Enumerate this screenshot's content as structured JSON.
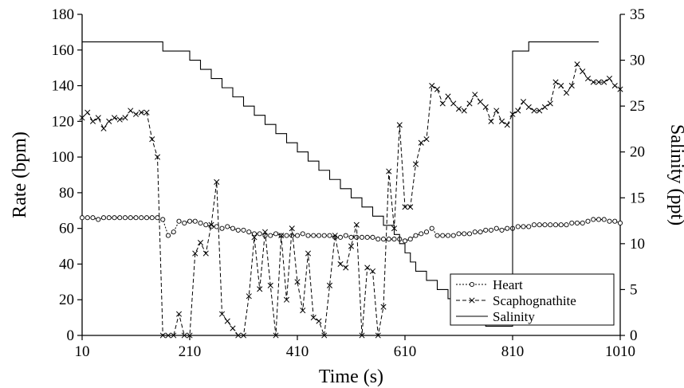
{
  "chart_data": {
    "type": "line",
    "title": "",
    "xlabel": "Time (s)",
    "ylabel": "Rate (bpm)",
    "y2label": "Salinity (ppt)",
    "xlim": [
      10,
      1010
    ],
    "ylim": [
      0,
      180
    ],
    "y2lim": [
      0,
      35
    ],
    "x_ticks": [
      10,
      210,
      410,
      610,
      810,
      1010
    ],
    "y_ticks": [
      0,
      20,
      40,
      60,
      80,
      100,
      120,
      140,
      160,
      180
    ],
    "y2_ticks": [
      0,
      5,
      10,
      15,
      20,
      25,
      30,
      35
    ],
    "grid": false,
    "legend_position": "bottom-right",
    "series": [
      {
        "name": "Heart",
        "axis": "left",
        "style": "dotted-circle",
        "x": [
          10,
          20,
          30,
          40,
          50,
          60,
          70,
          80,
          90,
          100,
          110,
          120,
          130,
          140,
          150,
          160,
          170,
          180,
          190,
          200,
          210,
          220,
          230,
          240,
          250,
          260,
          270,
          280,
          290,
          300,
          310,
          320,
          330,
          340,
          350,
          360,
          370,
          380,
          390,
          400,
          410,
          420,
          430,
          440,
          450,
          460,
          470,
          480,
          490,
          500,
          510,
          520,
          530,
          540,
          550,
          560,
          570,
          580,
          590,
          600,
          610,
          620,
          630,
          640,
          650,
          660,
          670,
          680,
          690,
          700,
          710,
          720,
          730,
          740,
          750,
          760,
          770,
          780,
          790,
          800,
          810,
          820,
          830,
          840,
          850,
          860,
          870,
          880,
          890,
          900,
          910,
          920,
          930,
          940,
          950,
          960,
          970,
          980,
          990,
          1000,
          1010
        ],
        "y": [
          66,
          66,
          66,
          65,
          66,
          66,
          66,
          66,
          66,
          66,
          66,
          66,
          66,
          66,
          66,
          65,
          56,
          58,
          64,
          63,
          64,
          64,
          63,
          62,
          61,
          61,
          60,
          61,
          60,
          59,
          59,
          58,
          57,
          57,
          56,
          56,
          57,
          56,
          56,
          56,
          56,
          57,
          56,
          56,
          56,
          56,
          56,
          55,
          55,
          56,
          55,
          55,
          55,
          55,
          55,
          54,
          54,
          54,
          54,
          54,
          53,
          54,
          56,
          57,
          58,
          60,
          56,
          56,
          56,
          56,
          57,
          57,
          57,
          58,
          58,
          59,
          59,
          60,
          59,
          60,
          60,
          61,
          61,
          61,
          62,
          62,
          62,
          62,
          62,
          62,
          62,
          63,
          63,
          63,
          64,
          65,
          65,
          65,
          64,
          64,
          63
        ]
      },
      {
        "name": "Scaphognathite",
        "axis": "left",
        "style": "dashed-x",
        "x": [
          10,
          20,
          30,
          40,
          50,
          60,
          70,
          80,
          90,
          100,
          110,
          120,
          130,
          140,
          150,
          160,
          170,
          180,
          190,
          200,
          210,
          220,
          230,
          240,
          250,
          260,
          270,
          280,
          290,
          300,
          310,
          320,
          330,
          340,
          350,
          360,
          370,
          380,
          390,
          400,
          410,
          420,
          430,
          440,
          450,
          460,
          470,
          480,
          490,
          500,
          510,
          520,
          530,
          540,
          550,
          560,
          570,
          580,
          590,
          600,
          610,
          620,
          630,
          640,
          650,
          660,
          670,
          680,
          690,
          700,
          710,
          720,
          730,
          740,
          750,
          760,
          770,
          780,
          790,
          800,
          810,
          820,
          830,
          840,
          850,
          860,
          870,
          880,
          890,
          900,
          910,
          920,
          930,
          940,
          950,
          960,
          970,
          980,
          990,
          1000,
          1010
        ],
        "y": [
          122,
          125,
          120,
          122,
          116,
          120,
          122,
          121,
          122,
          126,
          124,
          125,
          125,
          110,
          100,
          0,
          0,
          0,
          12,
          0,
          0,
          46,
          52,
          46,
          62,
          86,
          12,
          8,
          4,
          0,
          0,
          22,
          55,
          26,
          58,
          28,
          0,
          56,
          20,
          60,
          30,
          14,
          46,
          10,
          8,
          0,
          28,
          56,
          40,
          38,
          50,
          62,
          0,
          38,
          36,
          0,
          16,
          92,
          60,
          118,
          72,
          72,
          96,
          108,
          110,
          140,
          138,
          130,
          134,
          130,
          127,
          126,
          130,
          135,
          131,
          128,
          120,
          126,
          120,
          118,
          124,
          126,
          131,
          128,
          126,
          126,
          128,
          130,
          142,
          140,
          136,
          140,
          152,
          148,
          144,
          142,
          142,
          142,
          144,
          140,
          138
        ]
      },
      {
        "name": "Salinity",
        "axis": "right",
        "style": "solid",
        "x": [
          10,
          70,
          150,
          160,
          180,
          200,
          210,
          230,
          250,
          270,
          290,
          310,
          330,
          350,
          370,
          390,
          410,
          430,
          450,
          470,
          490,
          510,
          530,
          550,
          570,
          590,
          600,
          610,
          620,
          630,
          650,
          670,
          690,
          700,
          720,
          760,
          790,
          810,
          830,
          840,
          970
        ],
        "y": [
          32,
          32,
          32,
          31,
          31,
          31,
          30,
          29,
          28,
          27,
          26,
          25,
          24,
          23,
          22,
          21,
          20,
          19,
          18,
          17,
          16,
          15,
          14,
          13,
          12,
          11,
          10,
          9,
          8,
          7,
          6,
          5,
          4,
          3,
          2,
          1,
          1,
          31,
          31,
          32,
          32
        ]
      }
    ]
  }
}
